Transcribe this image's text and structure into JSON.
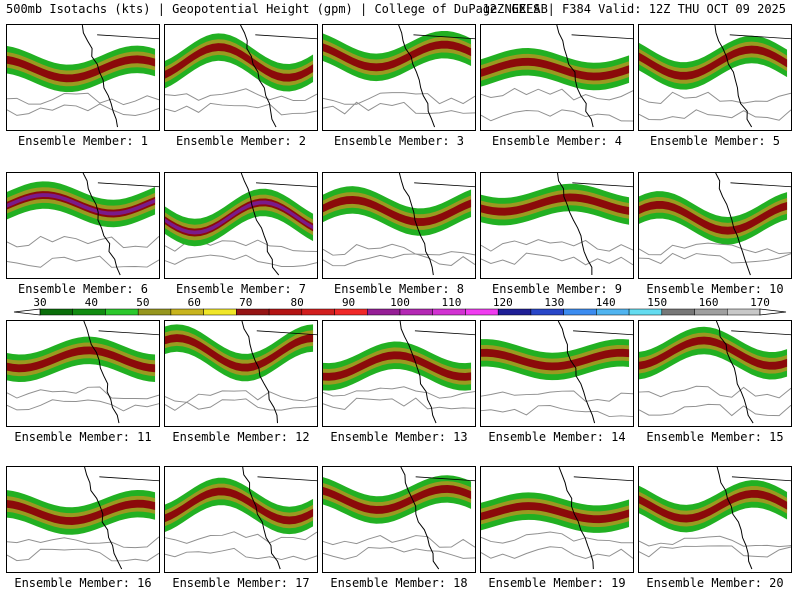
{
  "header": {
    "left": "500mb Isotachs (kts) | Geopotential Height (gpm) | College of DuPage NEXLAB",
    "right": "12Z GEFS | F384 Valid: 12Z THU OCT 09 2025"
  },
  "colorbar": {
    "labels": [
      "30",
      "40",
      "50",
      "60",
      "70",
      "80",
      "90",
      "100",
      "110",
      "120",
      "130",
      "140",
      "150",
      "160",
      "170"
    ],
    "colors": [
      "#0a6e0a",
      "#118c11",
      "#2cc82c",
      "#96961e",
      "#c8b41e",
      "#f0e628",
      "#961414",
      "#b41414",
      "#d21e1e",
      "#f02828",
      "#961e96",
      "#b428b4",
      "#d232d2",
      "#f03cf0",
      "#1e1e96",
      "#2846c8",
      "#3c8cf0",
      "#50b4f0",
      "#64dcf0",
      "#787878",
      "#a0a0a0",
      "#c8c8c8"
    ]
  },
  "panels": [
    {
      "label": "Ensemble Member: 1"
    },
    {
      "label": "Ensemble Member: 2"
    },
    {
      "label": "Ensemble Member: 3"
    },
    {
      "label": "Ensemble Member: 4"
    },
    {
      "label": "Ensemble Member: 5"
    },
    {
      "label": "Ensemble Member: 6"
    },
    {
      "label": "Ensemble Member: 7"
    },
    {
      "label": "Ensemble Member: 8"
    },
    {
      "label": "Ensemble Member: 9"
    },
    {
      "label": "Ensemble Member: 10"
    },
    {
      "label": "Ensemble Member: 11"
    },
    {
      "label": "Ensemble Member: 12"
    },
    {
      "label": "Ensemble Member: 13"
    },
    {
      "label": "Ensemble Member: 14"
    },
    {
      "label": "Ensemble Member: 15"
    },
    {
      "label": "Ensemble Member: 16"
    },
    {
      "label": "Ensemble Member: 17"
    },
    {
      "label": "Ensemble Member: 18"
    },
    {
      "label": "Ensemble Member: 19"
    },
    {
      "label": "Ensemble Member: 20"
    }
  ],
  "colors": {
    "jet_outer": "#22b022",
    "jet_mid": "#9a9a20",
    "jet_core": "#8b0a0a",
    "jet_max": "#7a1a8a",
    "height_contour": "#909090",
    "coast": "#000000"
  }
}
